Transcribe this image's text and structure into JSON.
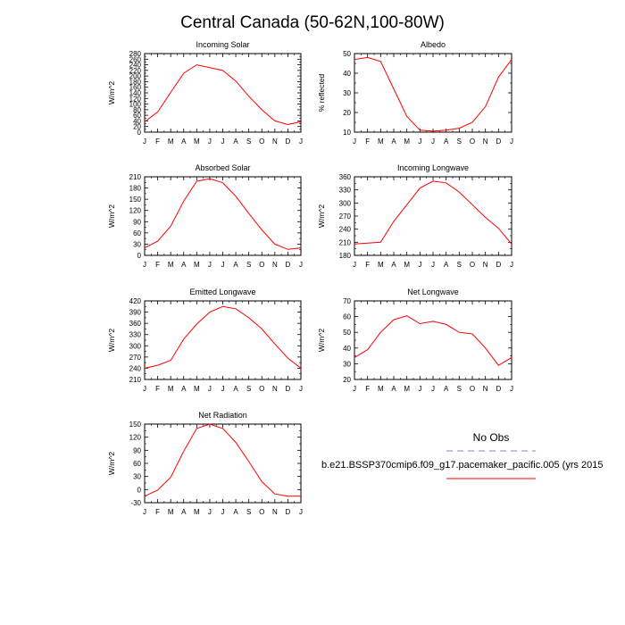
{
  "figure_title": "Central Canada (50-62N,100-80W)",
  "legend": {
    "title": "No Obs",
    "obs_color": "#8080e0",
    "model_label": "b.e21.BSSP370cmip6.f09_g17.pacemaker_pacific.005 (yrs 2015",
    "model_color": "#ff0000"
  },
  "chart_data": [
    {
      "type": "line",
      "title": "Incoming Solar",
      "ylabel": "W/m^2",
      "xlabel": "",
      "categories": [
        "J",
        "F",
        "M",
        "A",
        "M",
        "J",
        "J",
        "A",
        "S",
        "O",
        "N",
        "D",
        "J"
      ],
      "ylim": [
        0,
        280
      ],
      "yticks": [
        0,
        20,
        40,
        60,
        80,
        100,
        120,
        140,
        160,
        180,
        200,
        220,
        240,
        260,
        280
      ],
      "grid": false,
      "series": [
        {
          "values": [
            37,
            72,
            142,
            210,
            240,
            230,
            220,
            182,
            128,
            80,
            40,
            27,
            37
          ],
          "color": "#ff0000"
        }
      ]
    },
    {
      "type": "line",
      "title": "Albedo",
      "ylabel": "% reflected",
      "xlabel": "",
      "categories": [
        "J",
        "F",
        "M",
        "A",
        "M",
        "J",
        "J",
        "A",
        "S",
        "O",
        "N",
        "D",
        "J"
      ],
      "ylim": [
        10,
        50
      ],
      "yticks": [
        10,
        20,
        30,
        40,
        50
      ],
      "grid": false,
      "series": [
        {
          "values": [
            47,
            48,
            46,
            32,
            18,
            11,
            10.5,
            11,
            12,
            15,
            23,
            38,
            47
          ],
          "color": "#ff0000"
        }
      ]
    },
    {
      "type": "line",
      "title": "Absorbed Solar",
      "ylabel": "W/m^2",
      "xlabel": "",
      "categories": [
        "J",
        "F",
        "M",
        "A",
        "M",
        "J",
        "J",
        "A",
        "S",
        "O",
        "N",
        "D",
        "J"
      ],
      "ylim": [
        0,
        210
      ],
      "yticks": [
        0,
        30,
        60,
        90,
        120,
        150,
        180,
        210
      ],
      "grid": false,
      "series": [
        {
          "values": [
            20,
            38,
            78,
            145,
            198,
            205,
            194,
            158,
            112,
            68,
            30,
            16,
            20
          ],
          "color": "#ff0000"
        }
      ]
    },
    {
      "type": "line",
      "title": "Incoming Longwave",
      "ylabel": "W/m^2",
      "xlabel": "",
      "categories": [
        "J",
        "F",
        "M",
        "A",
        "M",
        "J",
        "J",
        "A",
        "S",
        "O",
        "N",
        "D",
        "J"
      ],
      "ylim": [
        180,
        360
      ],
      "yticks": [
        180,
        210,
        240,
        270,
        300,
        330,
        360
      ],
      "grid": false,
      "series": [
        {
          "values": [
            206,
            208,
            210,
            258,
            296,
            334,
            350,
            346,
            325,
            296,
            267,
            242,
            206
          ],
          "color": "#ff0000"
        }
      ]
    },
    {
      "type": "line",
      "title": "Emitted Longwave",
      "ylabel": "W/m^2",
      "xlabel": "",
      "categories": [
        "J",
        "F",
        "M",
        "A",
        "M",
        "J",
        "J",
        "A",
        "S",
        "O",
        "N",
        "D",
        "J"
      ],
      "ylim": [
        210,
        420
      ],
      "yticks": [
        210,
        240,
        270,
        300,
        330,
        360,
        390,
        420
      ],
      "grid": false,
      "series": [
        {
          "values": [
            240,
            248,
            261,
            318,
            358,
            390,
            405,
            399,
            375,
            345,
            305,
            267,
            240
          ],
          "color": "#ff0000"
        }
      ]
    },
    {
      "type": "line",
      "title": "Net Longwave",
      "ylabel": "W/m^2",
      "xlabel": "",
      "categories": [
        "J",
        "F",
        "M",
        "A",
        "M",
        "J",
        "J",
        "A",
        "S",
        "O",
        "N",
        "D",
        "J"
      ],
      "ylim": [
        20,
        70
      ],
      "yticks": [
        20,
        30,
        40,
        50,
        60,
        70
      ],
      "grid": false,
      "series": [
        {
          "values": [
            34,
            39,
            50,
            58,
            60.5,
            55.5,
            57,
            55,
            50,
            49,
            40,
            29,
            34
          ],
          "color": "#ff0000"
        }
      ]
    },
    {
      "type": "line",
      "title": "Net Radiation",
      "ylabel": "W/m^2",
      "xlabel": "",
      "categories": [
        "J",
        "F",
        "M",
        "A",
        "M",
        "J",
        "J",
        "A",
        "S",
        "O",
        "N",
        "D",
        "J"
      ],
      "ylim": [
        -30,
        150
      ],
      "yticks": [
        -30,
        0,
        30,
        60,
        90,
        120,
        150
      ],
      "grid": false,
      "series": [
        {
          "values": [
            -15,
            -1,
            28,
            88,
            140,
            150,
            140,
            108,
            64,
            18,
            -10,
            -15,
            -15
          ],
          "color": "#ff0000"
        }
      ]
    }
  ]
}
